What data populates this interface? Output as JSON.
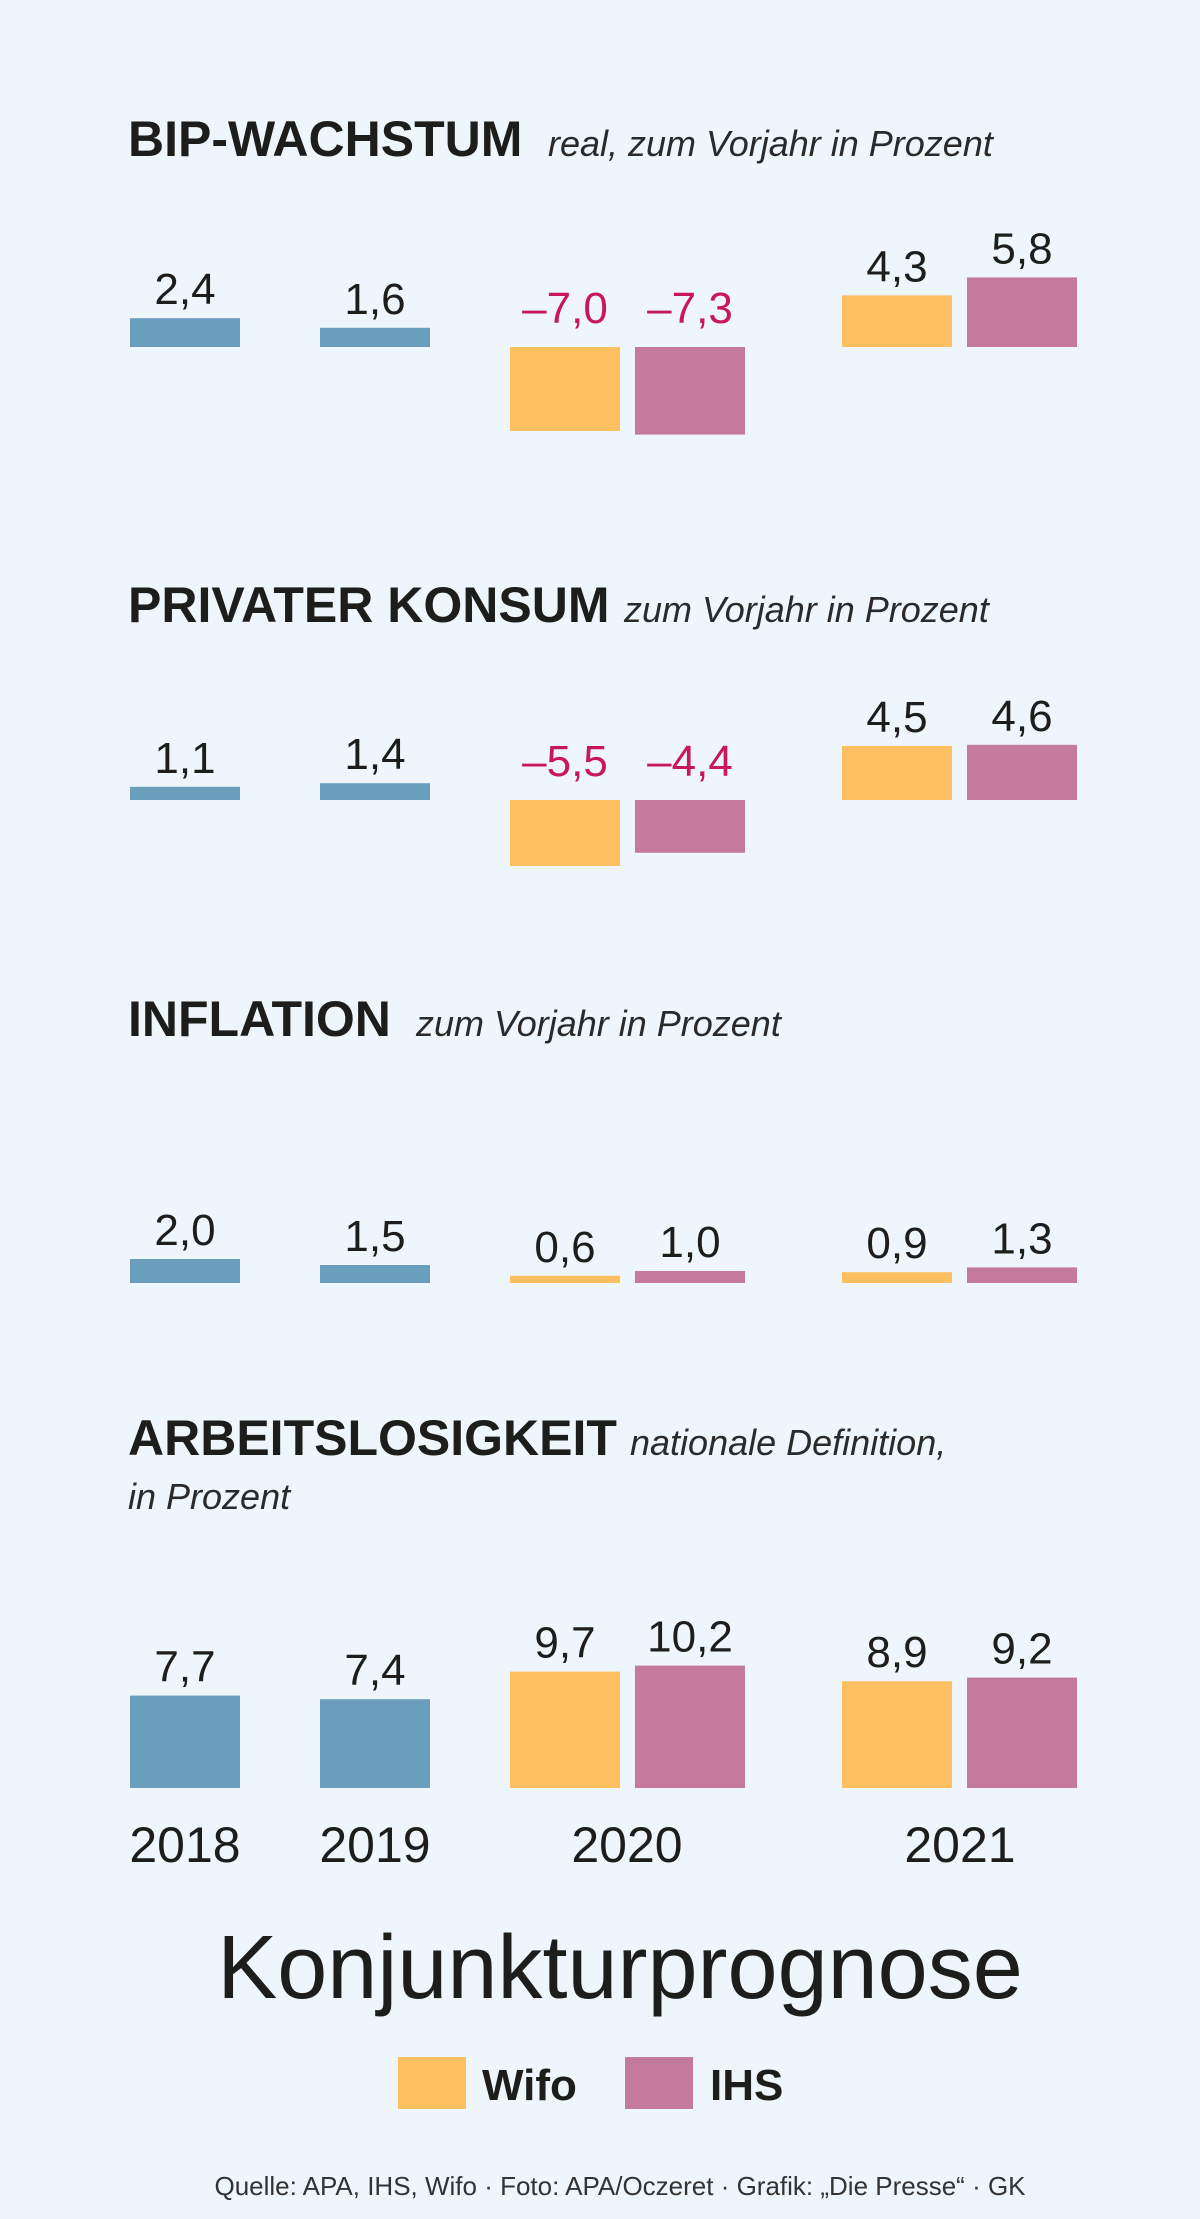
{
  "colors": {
    "past": "#6b9dbd",
    "wifo": "#fdbf5f",
    "ihs": "#c47a9a",
    "negative_label": "#c8175d",
    "label": "#1d1d1b"
  },
  "main_title": "Konjunkturprognose",
  "legend": [
    {
      "name": "Wifo",
      "color": "#fdbf5f"
    },
    {
      "name": "IHS",
      "color": "#c47a9a"
    }
  ],
  "years": [
    "2018",
    "2019",
    "2020",
    "2021"
  ],
  "source": "Quelle: APA, IHS, Wifo · Foto: APA/Oczeret · Grafik: „Die Presse“ · GK",
  "chart_data": [
    {
      "type": "bar",
      "title": "BIP-WACHSTUM",
      "subtitle": "real, zum Vorjahr in Prozent",
      "categories": [
        "2018",
        "2019",
        "2020",
        "2021"
      ],
      "series": [
        {
          "name": "",
          "values": [
            2.4,
            1.6,
            null,
            null
          ]
        },
        {
          "name": "Wifo",
          "values": [
            null,
            null,
            -7.0,
            4.3
          ]
        },
        {
          "name": "IHS",
          "values": [
            null,
            null,
            -7.3,
            5.8
          ]
        }
      ],
      "labels": [
        "2,4",
        "1,6",
        "–7,0",
        "4,3",
        "–7,3",
        "5,8"
      ]
    },
    {
      "type": "bar",
      "title": "PRIVATER KONSUM",
      "subtitle": "zum Vorjahr in Prozent",
      "categories": [
        "2018",
        "2019",
        "2020",
        "2021"
      ],
      "series": [
        {
          "name": "",
          "values": [
            1.1,
            1.4,
            null,
            null
          ]
        },
        {
          "name": "Wifo",
          "values": [
            null,
            null,
            -5.5,
            4.5
          ]
        },
        {
          "name": "IHS",
          "values": [
            null,
            null,
            -4.4,
            4.6
          ]
        }
      ],
      "labels": [
        "1,1",
        "1,4",
        "–5,5",
        "4,5",
        "–4,4",
        "4,6"
      ]
    },
    {
      "type": "bar",
      "title": "INFLATION",
      "subtitle": "zum Vorjahr in Prozent",
      "categories": [
        "2018",
        "2019",
        "2020",
        "2021"
      ],
      "series": [
        {
          "name": "",
          "values": [
            2.0,
            1.5,
            null,
            null
          ]
        },
        {
          "name": "Wifo",
          "values": [
            null,
            null,
            0.6,
            0.9
          ]
        },
        {
          "name": "IHS",
          "values": [
            null,
            null,
            1.0,
            1.3
          ]
        }
      ],
      "labels": [
        "2,0",
        "1,5",
        "0,6",
        "0,9",
        "1,0",
        "1,3"
      ]
    },
    {
      "type": "bar",
      "title": "ARBEITSLOSIGKEIT",
      "subtitle": "nationale Definition,",
      "subtitle2": "in Prozent",
      "categories": [
        "2018",
        "2019",
        "2020",
        "2021"
      ],
      "series": [
        {
          "name": "",
          "values": [
            7.7,
            7.4,
            null,
            null
          ]
        },
        {
          "name": "Wifo",
          "values": [
            null,
            null,
            9.7,
            8.9
          ]
        },
        {
          "name": "IHS",
          "values": [
            null,
            null,
            10.2,
            9.2
          ]
        }
      ],
      "labels": [
        "7,7",
        "7,4",
        "9,7",
        "8,9",
        "10,2",
        "9,2"
      ]
    }
  ]
}
